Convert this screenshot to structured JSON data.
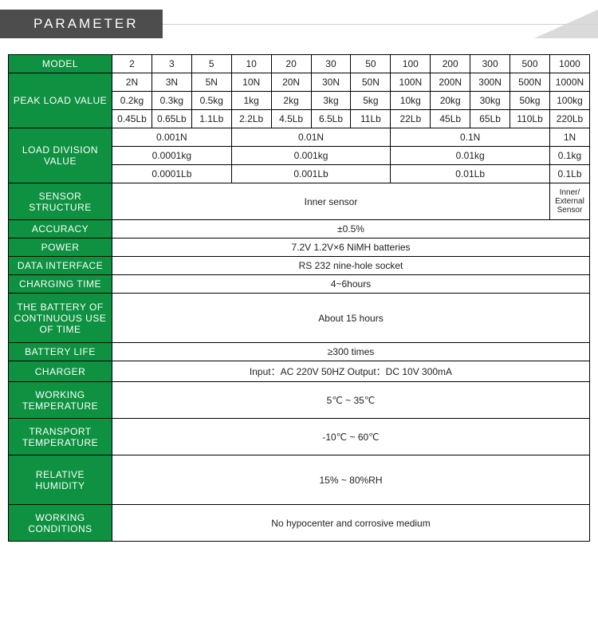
{
  "header": {
    "title": "PARAMETER"
  },
  "labels": {
    "model": "MODEL",
    "peak_load": "PEAK LOAD VALUE",
    "load_division": "LOAD DIVISION VALUE",
    "sensor_structure": "SENSOR STRUCTURE",
    "accuracy": "ACCURACY",
    "power": "POWER",
    "data_interface": "DATA INTERFACE",
    "charging_time": "CHARGING TIME",
    "battery_continuous": "THE BATTERY OF CONTINUOUS USE OF TIME",
    "battery_life": "BATTERY LIFE",
    "charger": "CHARGER",
    "working_temp": "WORKING TEMPERATURE",
    "transport_temp": "TRANSPORT TEMPERATURE",
    "relative_humidity": "RELATIVE HUMIDITY",
    "working_conditions": "WORKING CONDITIONS"
  },
  "models": [
    "2",
    "3",
    "5",
    "10",
    "20",
    "30",
    "50",
    "100",
    "200",
    "300",
    "500",
    "1000"
  ],
  "peak_n": [
    "2N",
    "3N",
    "5N",
    "10N",
    "20N",
    "30N",
    "50N",
    "100N",
    "200N",
    "300N",
    "500N",
    "1000N"
  ],
  "peak_kg": [
    "0.2kg",
    "0.3kg",
    "0.5kg",
    "1kg",
    "2kg",
    "3kg",
    "5kg",
    "10kg",
    "20kg",
    "30kg",
    "50kg",
    "100kg"
  ],
  "peak_lb": [
    "0.45Lb",
    "0.65Lb",
    "1.1Lb",
    "2.2Lb",
    "4.5Lb",
    "6.5Lb",
    "11Lb",
    "22Lb",
    "45Lb",
    "65Lb",
    "110Lb",
    "220Lb"
  ],
  "div_n": {
    "g1": "0.001N",
    "g2": "0.01N",
    "g3": "0.1N",
    "g4": "1N"
  },
  "div_kg": {
    "g1": "0.0001kg",
    "g2": "0.001kg",
    "g3": "0.01kg",
    "g4": "0.1kg"
  },
  "div_lb": {
    "g1": "0.0001Lb",
    "g2": "0.001Lb",
    "g3": "0.01Lb",
    "g4": "0.1Lb"
  },
  "sensor": {
    "main": "Inner sensor",
    "last": "Inner/ External Sensor"
  },
  "vals": {
    "accuracy": "±0.5%",
    "power": "7.2V  1.2V×6  NiMH batteries",
    "data_interface": "RS 232 nine-hole socket",
    "charging_time": "4~6hours",
    "battery_continuous": "About 15 hours",
    "battery_life": "≥300 times",
    "charger": "Input：AC 220V 50HZ    Output：DC 10V 300mA",
    "working_temp": "5℃ ~ 35℃",
    "transport_temp": "-10℃ ~ 60℃",
    "relative_humidity": "15% ~ 80%RH",
    "working_conditions": "No hypocenter and corrosive medium"
  },
  "colors": {
    "header_bg": "#0e9141",
    "header_fg": "#ffffff",
    "border": "#000000",
    "tab_bg": "#4d4d4d",
    "corner": "#d3d3d3"
  }
}
